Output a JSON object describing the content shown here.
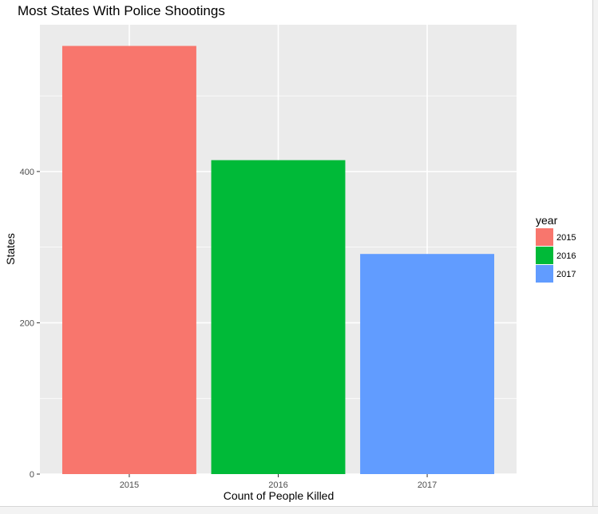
{
  "chart_data": {
    "type": "bar",
    "title": "Most States With Police Shootings",
    "xlabel": "Count of People Killed",
    "ylabel": "States",
    "categories": [
      "2015",
      "2016",
      "2017"
    ],
    "values": [
      566,
      415,
      291
    ],
    "colors": [
      "#F8766D",
      "#00BA38",
      "#619CFF"
    ],
    "ylim": [
      0,
      594
    ],
    "y_ticks": [
      0,
      200,
      400
    ],
    "grid": true,
    "panel_background": "#EBEBEB",
    "legend": {
      "title": "year",
      "position": "right",
      "entries": [
        "2015",
        "2016",
        "2017"
      ]
    }
  }
}
